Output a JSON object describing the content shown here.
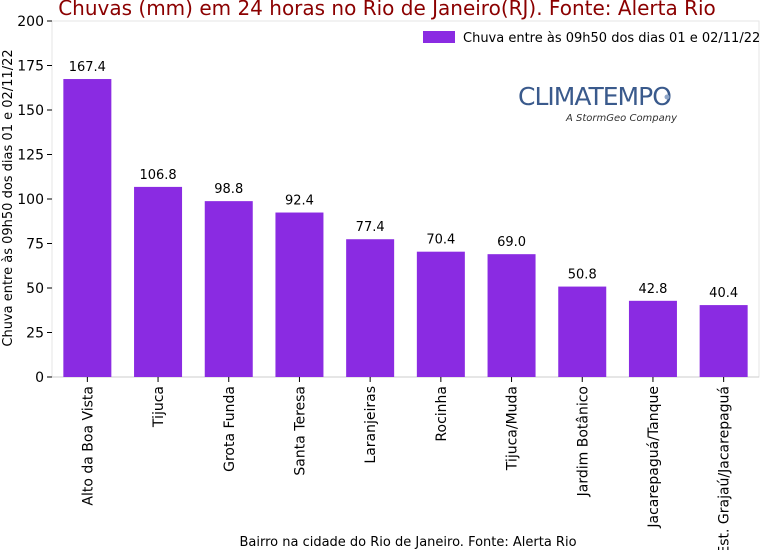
{
  "chart_data": {
    "type": "bar",
    "title": "Chuvas (mm) em 24 horas no Rio de Janeiro(RJ). Fonte: Alerta Rio",
    "xlabel": "Bairro na cidade do Rio de Janeiro. Fonte: Alerta Rio",
    "ylabel": "Chuva entre às 09h50 dos dias 01 e 02/11/22",
    "ylim": [
      0,
      200
    ],
    "yticks": [
      0,
      25,
      50,
      75,
      100,
      125,
      150,
      175,
      200
    ],
    "categories": [
      "Alto da Boa Vista",
      "Tijuca",
      "Grota Funda",
      "Santa Teresa",
      "Laranjeiras",
      "Rocinha",
      "Tijuca/Muda",
      "Jardim Botânico",
      "Jacarepaguá/Tanque",
      "Est. Grajaú/Jacarepaguá"
    ],
    "series": [
      {
        "name": "Chuva entre às 09h50 dos dias 01 e 02/11/22",
        "values": [
          167.4,
          106.8,
          98.8,
          92.4,
          77.4,
          70.4,
          69.0,
          50.8,
          42.8,
          40.4
        ],
        "labels": [
          "167.4",
          "106.8",
          "98.8",
          "92.4",
          "77.4",
          "70.4",
          "69.0",
          "50.8",
          "42.8",
          "40.4"
        ],
        "color": "#8a2be2"
      }
    ],
    "legend_position": "top-right",
    "grid": false
  },
  "logo": {
    "name": "CLIMATEMPO",
    "tagline": "A StormGeo Company",
    "color": "#3a5a8c"
  }
}
